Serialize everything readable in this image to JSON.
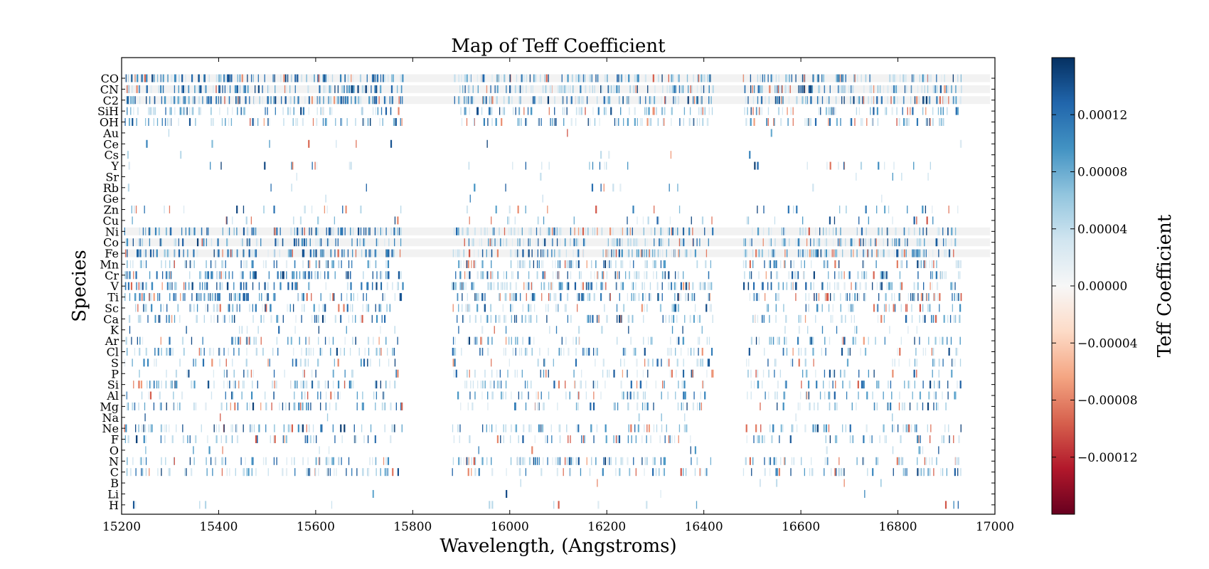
{
  "chart_data": {
    "type": "heatmap",
    "title": "Map of Teff Coefficient",
    "xlabel": "Wavelength, (Angstroms)",
    "ylabel": "Species",
    "xlim": [
      15200,
      17000
    ],
    "x_ticks": [
      "15200",
      "15400",
      "15600",
      "15800",
      "16000",
      "16200",
      "16400",
      "16600",
      "16800",
      "17000"
    ],
    "x_tick_values": [
      15200,
      15400,
      15600,
      15800,
      16000,
      16200,
      16400,
      16600,
      16800,
      17000
    ],
    "species": [
      "CO",
      "CN",
      "C2",
      "SiH",
      "OH",
      "Au",
      "Ce",
      "Cs",
      "Y",
      "Sr",
      "Rb",
      "Ge",
      "Zn",
      "Cu",
      "Ni",
      "Co",
      "Fe",
      "Mn",
      "Cr",
      "V",
      "Ti",
      "Sc",
      "Ca",
      "K",
      "Ar",
      "Cl",
      "S",
      "P",
      "Si",
      "Al",
      "Mg",
      "Na",
      "Ne",
      "F",
      "O",
      "N",
      "C",
      "B",
      "Li",
      "H"
    ],
    "line_density": {
      "CO": 0.9,
      "CN": 0.9,
      "C2": 0.9,
      "SiH": 0.55,
      "OH": 0.55,
      "Au": 0.01,
      "Ce": 0.03,
      "Cs": 0.02,
      "Y": 0.12,
      "Sr": 0.02,
      "Rb": 0.05,
      "Ge": 0.01,
      "Zn": 0.15,
      "Cu": 0.15,
      "Ni": 0.7,
      "Co": 0.7,
      "Fe": 0.9,
      "Mn": 0.6,
      "Cr": 0.7,
      "V": 0.75,
      "Ti": 0.75,
      "Sc": 0.5,
      "Ca": 0.5,
      "K": 0.1,
      "Ar": 0.45,
      "Cl": 0.45,
      "S": 0.3,
      "P": 0.3,
      "Si": 0.5,
      "Al": 0.35,
      "Mg": 0.4,
      "Na": 0.03,
      "Ne": 0.5,
      "F": 0.4,
      "O": 0.05,
      "N": 0.55,
      "C": 0.45,
      "B": 0.02,
      "Li": 0.02,
      "H": 0.05
    },
    "banded_species": [
      "CO",
      "CN",
      "C2",
      "Ni",
      "Co",
      "Fe"
    ],
    "coverage_gaps": [
      [
        15780,
        15880
      ],
      [
        16420,
        16480
      ],
      [
        16930,
        17000
      ]
    ],
    "colorbar": {
      "label": "Teff Coefficient",
      "colormap": "RdBu",
      "range": [
        -0.00016,
        0.00016
      ],
      "ticks": [
        "0.00012",
        "0.00008",
        "0.00004",
        "0.00000",
        "−0.00004",
        "−0.00008",
        "−0.00012"
      ],
      "tick_values": [
        0.00012,
        8e-05,
        4e-05,
        0.0,
        -4e-05,
        -8e-05,
        -0.00012
      ]
    }
  }
}
